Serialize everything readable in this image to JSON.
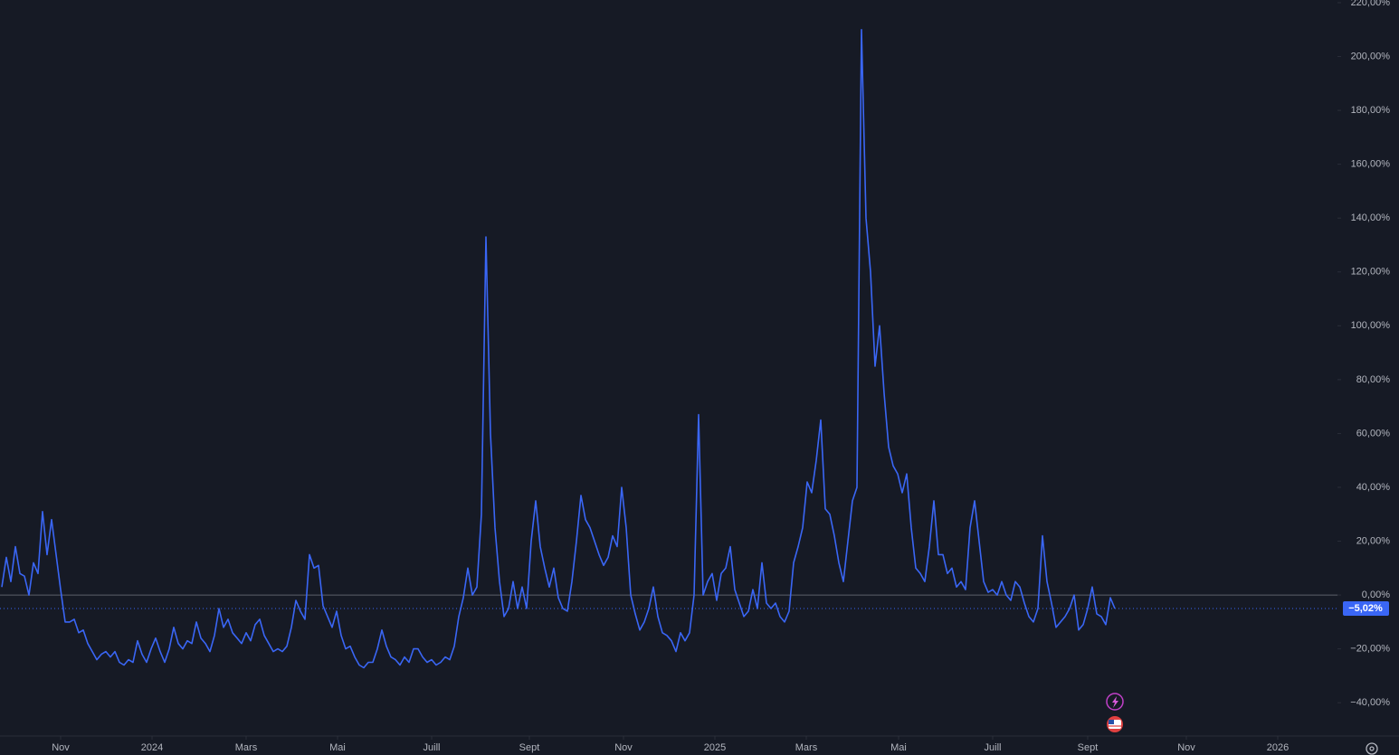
{
  "chart_data": {
    "type": "line",
    "series": [
      {
        "color": "#3a66f5",
        "values": [
          3,
          14,
          5,
          18,
          8,
          7,
          0,
          12,
          8,
          31,
          15,
          28,
          15,
          2,
          -10,
          -10,
          -9,
          -14,
          -13,
          -18,
          -21,
          -24,
          -22,
          -21,
          -23,
          -21,
          -25,
          -26,
          -24,
          -25,
          -17,
          -22,
          -25,
          -20,
          -16,
          -21,
          -25,
          -20,
          -12,
          -18,
          -20,
          -17,
          -18,
          -10,
          -16,
          -18,
          -21,
          -15,
          -5,
          -12,
          -9,
          -14,
          -16,
          -18,
          -14,
          -17,
          -11,
          -9,
          -15,
          -18,
          -21,
          -20,
          -21,
          -19,
          -12,
          -2,
          -6,
          -9,
          15,
          10,
          11,
          -4,
          -8,
          -12,
          -6,
          -15,
          -20,
          -19,
          -23,
          -26,
          -27,
          -25,
          -25,
          -20,
          -13,
          -19,
          -23,
          -24,
          -26,
          -23,
          -25,
          -20,
          -20,
          -23,
          -25,
          -24,
          -26,
          -25,
          -23,
          -24,
          -19,
          -8,
          -1,
          10,
          0,
          3,
          30,
          133,
          60,
          25,
          5,
          -8,
          -5,
          5,
          -5,
          3,
          -5,
          20,
          35,
          18,
          10,
          3,
          10,
          -1,
          -5,
          -6,
          5,
          20,
          37,
          28,
          25,
          20,
          15,
          11,
          14,
          22,
          18,
          40,
          25,
          0,
          -7,
          -13,
          -10,
          -5,
          3,
          -8,
          -14,
          -15,
          -17,
          -21,
          -14,
          -17,
          -14,
          0,
          67,
          0,
          5,
          8,
          -2,
          8,
          10,
          18,
          2,
          -3,
          -8,
          -6,
          2,
          -5,
          12,
          -3,
          -5,
          -3,
          -8,
          -10,
          -6,
          12,
          18,
          25,
          42,
          38,
          50,
          65,
          32,
          30,
          22,
          12,
          5,
          20,
          35,
          40,
          210,
          140,
          120,
          85,
          100,
          75,
          55,
          48,
          45,
          38,
          45,
          25,
          10,
          8,
          5,
          18,
          35,
          15,
          15,
          8,
          10,
          3,
          5,
          2,
          25,
          35,
          20,
          5,
          1,
          2,
          0,
          5,
          0,
          -2,
          5,
          3,
          -3,
          -8,
          -10,
          -5,
          22,
          5,
          -3,
          -12,
          -10,
          -8,
          -5,
          0,
          -13,
          -11,
          -5,
          3,
          -7,
          -8,
          -11,
          -1,
          -5.02
        ]
      }
    ],
    "current_label": {
      "value": -5.02,
      "label": "−5,02%"
    },
    "xlim": [
      0,
      295.2
    ],
    "xticks": [
      {
        "value": 13,
        "label": "Nov"
      },
      {
        "value": 33.2,
        "label": "2024"
      },
      {
        "value": 54,
        "label": "Mars"
      },
      {
        "value": 74.2,
        "label": "Mai"
      },
      {
        "value": 95,
        "label": "Juill"
      },
      {
        "value": 116.6,
        "label": "Sept"
      },
      {
        "value": 137.4,
        "label": "Nov"
      },
      {
        "value": 157.6,
        "label": "2025"
      },
      {
        "value": 177.8,
        "label": "Mars"
      },
      {
        "value": 198.2,
        "label": "Mai"
      },
      {
        "value": 219,
        "label": "Juill"
      },
      {
        "value": 240,
        "label": "Sept"
      },
      {
        "value": 261.8,
        "label": "Nov"
      },
      {
        "value": 282,
        "label": "2026"
      }
    ],
    "ylim": [
      -44.3,
      221
    ],
    "yticks": [
      {
        "value": 220,
        "label": "220,00%"
      },
      {
        "value": 200,
        "label": "200,00%"
      },
      {
        "value": 180,
        "label": "180,00%"
      },
      {
        "value": 160,
        "label": "160,00%"
      },
      {
        "value": 140,
        "label": "140,00%"
      },
      {
        "value": 120,
        "label": "120,00%"
      },
      {
        "value": 100,
        "label": "100,00%"
      },
      {
        "value": 80,
        "label": "80,00%"
      },
      {
        "value": 60,
        "label": "60,00%"
      },
      {
        "value": 40,
        "label": "40,00%"
      },
      {
        "value": 20,
        "label": "20,00%"
      },
      {
        "value": 0,
        "label": "0,00%"
      },
      {
        "value": -20,
        "label": "−20,00%"
      },
      {
        "value": -40,
        "label": "−40,00%"
      }
    ],
    "zero_line": true
  }
}
